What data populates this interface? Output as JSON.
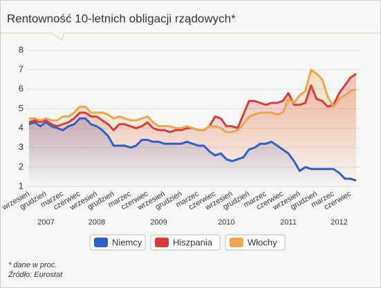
{
  "chart_data": {
    "type": "line",
    "title": "Rentowność 10-letnich obligacji rządowych*",
    "footnotes": [
      "* dane w proc.",
      "Źródło: Eurostat"
    ],
    "categories": [
      "wrzesień",
      null,
      null,
      "grudzień",
      null,
      null,
      "marzec",
      null,
      null,
      "czerwiec",
      null,
      null,
      "wrzesień",
      null,
      null,
      "grudzień",
      null,
      null,
      "marzec",
      null,
      null,
      "czerwiec",
      null,
      null,
      "wrzesień",
      null,
      null,
      "grudzień",
      null,
      null,
      "marzec",
      null,
      null,
      "czerwiec",
      null,
      null,
      "wrzesień",
      null,
      null,
      "grudzień",
      null,
      null,
      "marzec",
      null,
      null,
      "czerwiec",
      null,
      null,
      "wrzesień",
      null,
      null,
      "grudzień",
      null,
      null,
      "marzec",
      null,
      null,
      "czerwiec",
      null
    ],
    "category_years": [
      null,
      null,
      null,
      "2007",
      null,
      null,
      null,
      null,
      null,
      null,
      null,
      null,
      "2008",
      null,
      null,
      null,
      null,
      null,
      null,
      null,
      null,
      null,
      null,
      "2009",
      null,
      null,
      null,
      null,
      null,
      null,
      null,
      null,
      null,
      null,
      null,
      "2010",
      null,
      null,
      null,
      null,
      null,
      null,
      null,
      null,
      null,
      null,
      "2011",
      null,
      null,
      null,
      null,
      null,
      null,
      null,
      null,
      "2012",
      null,
      null,
      null
    ],
    "ylim": [
      1,
      8
    ],
    "yticks": [
      1,
      2,
      3,
      4,
      5,
      6,
      7,
      8
    ],
    "grid": true,
    "legend": "bottom",
    "series": [
      {
        "name": "Niemcy",
        "color": "#2f5fc9",
        "values": [
          4.2,
          4.3,
          4.1,
          4.3,
          4.1,
          4.0,
          3.9,
          4.1,
          4.2,
          4.5,
          4.5,
          4.2,
          4.1,
          3.9,
          3.6,
          3.1,
          3.1,
          3.1,
          3.0,
          3.1,
          3.4,
          3.4,
          3.3,
          3.3,
          3.2,
          3.2,
          3.2,
          3.2,
          3.3,
          3.2,
          3.1,
          3.1,
          2.8,
          2.6,
          2.7,
          2.4,
          2.3,
          2.4,
          2.5,
          2.9,
          3.0,
          3.2,
          3.2,
          3.3,
          3.1,
          2.9,
          2.7,
          2.3,
          1.8,
          2.0,
          1.9,
          1.9,
          1.9,
          1.9,
          1.9,
          1.7,
          1.4,
          1.4,
          1.3
        ]
      },
      {
        "name": "Hiszpania",
        "color": "#d93a3c",
        "values": [
          4.3,
          4.4,
          4.3,
          4.4,
          4.2,
          4.1,
          4.2,
          4.3,
          4.5,
          4.8,
          4.8,
          4.6,
          4.6,
          4.4,
          4.2,
          3.9,
          4.2,
          4.2,
          4.1,
          4.0,
          4.1,
          4.3,
          4.0,
          3.9,
          3.9,
          3.8,
          3.9,
          3.9,
          4.0,
          4.0,
          3.9,
          3.9,
          4.1,
          4.6,
          4.5,
          4.1,
          4.1,
          4.0,
          4.7,
          5.4,
          5.4,
          5.3,
          5.2,
          5.3,
          5.3,
          5.4,
          5.8,
          5.2,
          5.2,
          5.3,
          6.2,
          5.5,
          5.4,
          5.1,
          5.2,
          5.8,
          6.2,
          6.6,
          6.8
        ]
      },
      {
        "name": "Włochy",
        "color": "#eea54d",
        "values": [
          4.5,
          4.5,
          4.4,
          4.5,
          4.4,
          4.4,
          4.6,
          4.6,
          4.8,
          5.1,
          5.1,
          4.8,
          4.8,
          4.8,
          4.7,
          4.5,
          4.6,
          4.5,
          4.4,
          4.4,
          4.5,
          4.6,
          4.3,
          4.1,
          4.1,
          4.1,
          4.0,
          4.0,
          4.1,
          4.0,
          3.9,
          3.9,
          4.1,
          4.1,
          4.0,
          3.8,
          3.8,
          3.9,
          4.2,
          4.6,
          4.7,
          4.8,
          4.8,
          4.8,
          4.7,
          4.8,
          5.5,
          5.3,
          5.7,
          5.9,
          7.0,
          6.8,
          6.5,
          5.6,
          5.1,
          5.5,
          5.7,
          5.9,
          6.0
        ]
      }
    ]
  }
}
